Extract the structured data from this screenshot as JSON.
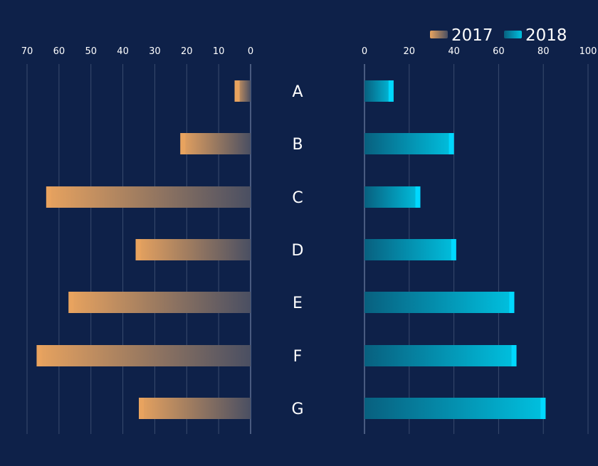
{
  "chart_data": {
    "type": "bar",
    "orientation": "horizontal",
    "layout": "butterfly",
    "categories": [
      "A",
      "B",
      "C",
      "D",
      "E",
      "F",
      "G"
    ],
    "series": [
      {
        "name": "2017",
        "side": "left",
        "values": [
          5,
          22,
          64,
          36,
          57,
          67,
          35
        ],
        "color_start": "#e8a35f",
        "color_end": "#4a4f62",
        "cap_color": "#e8a35f"
      },
      {
        "name": "2018",
        "side": "right",
        "values": [
          13,
          40,
          25,
          41,
          67,
          68,
          81
        ],
        "color_start": "#08607f",
        "color_end": "#00c1e0",
        "cap_color": "#00d8ff"
      }
    ],
    "left_axis": {
      "min": 0,
      "max": 70,
      "ticks": [
        "70",
        "60",
        "50",
        "40",
        "30",
        "20",
        "10",
        "0"
      ],
      "inverted": true
    },
    "right_axis": {
      "min": 0,
      "max": 100,
      "ticks": [
        "0",
        "20",
        "40",
        "60",
        "80",
        "100"
      ]
    },
    "grid": true,
    "legend_position": "top-right",
    "background": "#0e2149"
  }
}
